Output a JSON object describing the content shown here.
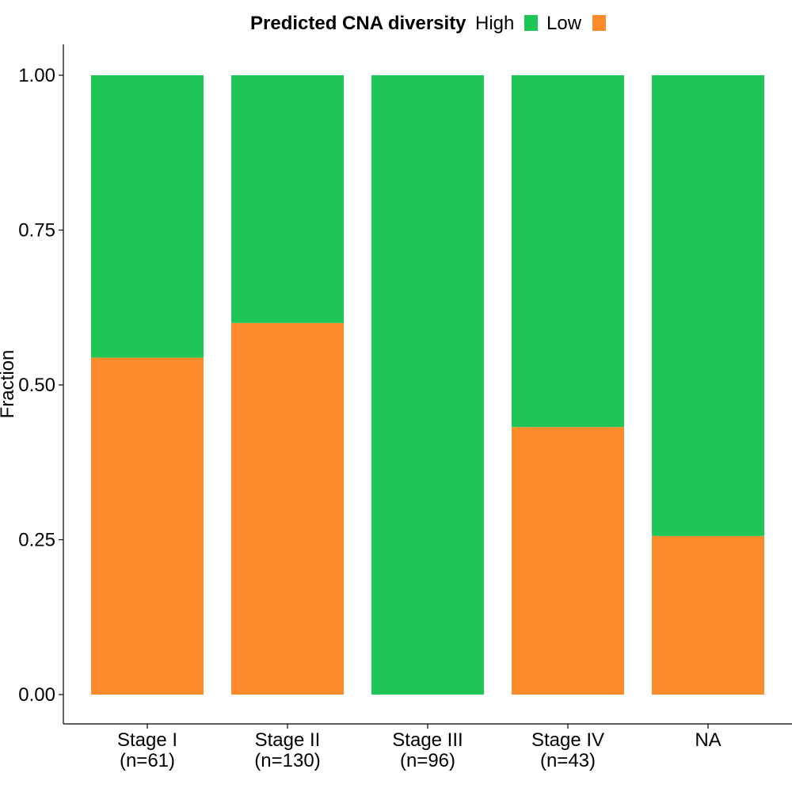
{
  "chart_data": {
    "type": "bar",
    "stacked": true,
    "title": "",
    "xlabel": "",
    "ylabel": "Fraction",
    "ylim": [
      0,
      1
    ],
    "yticks": [
      "0.00",
      "0.25",
      "0.50",
      "0.75",
      "1.00"
    ],
    "categories": [
      {
        "label": "Stage I",
        "sublabel": "(n=61)"
      },
      {
        "label": "Stage II",
        "sublabel": "(n=130)"
      },
      {
        "label": "Stage III",
        "sublabel": "(n=96)"
      },
      {
        "label": "Stage IV",
        "sublabel": "(n=43)"
      },
      {
        "label": "NA",
        "sublabel": ""
      }
    ],
    "series": [
      {
        "name": "Low",
        "color": "#FD8A2B",
        "values": [
          0.544,
          0.6,
          0.0,
          0.432,
          0.256
        ]
      },
      {
        "name": "High",
        "color": "#1DC656",
        "values": [
          0.456,
          0.4,
          1.0,
          0.568,
          0.744
        ]
      }
    ],
    "legend": {
      "title": "Predicted CNA diversity",
      "position": "top",
      "entries": [
        {
          "name": "High",
          "color": "#1DC656"
        },
        {
          "name": "Low",
          "color": "#FD8A2B"
        }
      ]
    },
    "grid": false
  }
}
